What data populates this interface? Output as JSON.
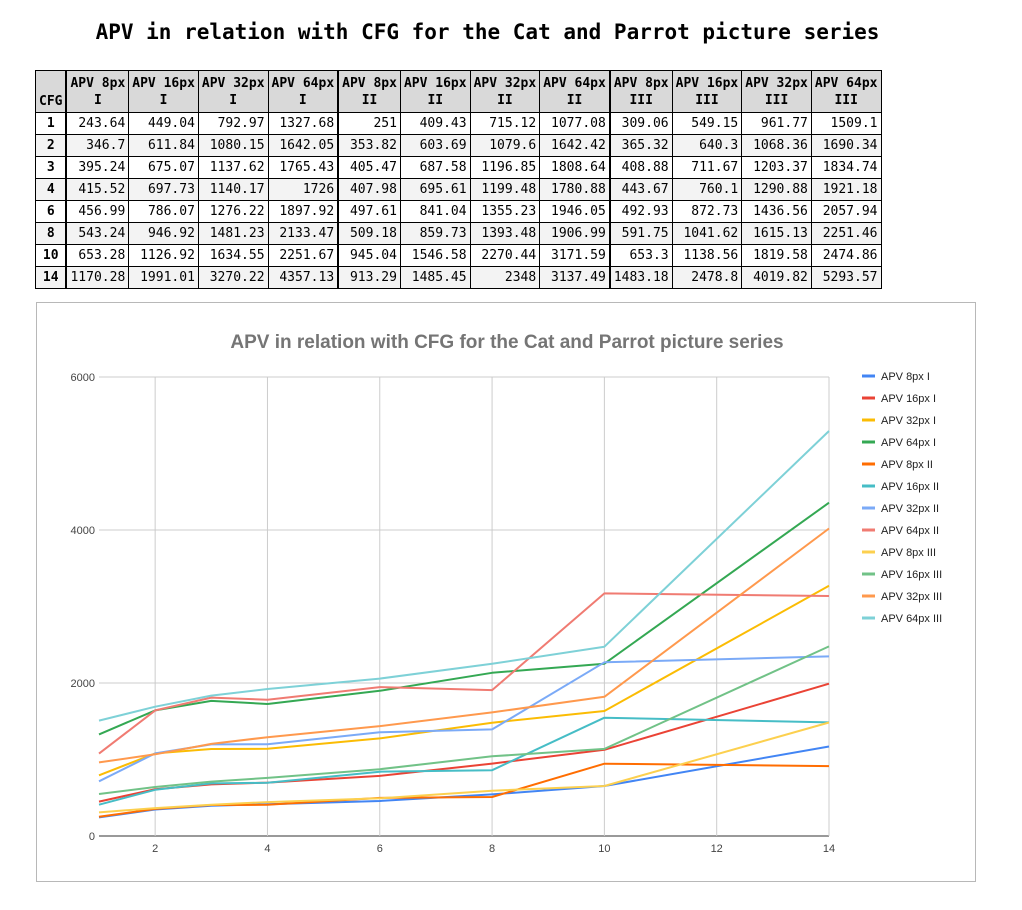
{
  "page_title": "APV in relation with CFG for the Cat and Parrot picture series",
  "table": {
    "cfg_header": "CFG",
    "columns": [
      "APV 8px\nI",
      "APV 16px\nI",
      "APV 32px\nI",
      "APV 64px\nI",
      "APV 8px\nII",
      "APV 16px\nII",
      "APV 32px\nII",
      "APV 64px\nII",
      "APV 8px\nIII",
      "APV 16px\nIII",
      "APV 32px\nIII",
      "APV 64px\nIII"
    ],
    "rows": [
      {
        "cfg": "1",
        "cells": [
          "243.64",
          "449.04",
          "792.97",
          "1327.68",
          "251",
          "409.43",
          "715.12",
          "1077.08",
          "309.06",
          "549.15",
          "961.77",
          "1509.1"
        ]
      },
      {
        "cfg": "2",
        "cells": [
          "346.7",
          "611.84",
          "1080.15",
          "1642.05",
          "353.82",
          "603.69",
          "1079.6",
          "1642.42",
          "365.32",
          "640.3",
          "1068.36",
          "1690.34"
        ]
      },
      {
        "cfg": "3",
        "cells": [
          "395.24",
          "675.07",
          "1137.62",
          "1765.43",
          "405.47",
          "687.58",
          "1196.85",
          "1808.64",
          "408.88",
          "711.67",
          "1203.37",
          "1834.74"
        ]
      },
      {
        "cfg": "4",
        "cells": [
          "415.52",
          "697.73",
          "1140.17",
          "1726",
          "407.98",
          "695.61",
          "1199.48",
          "1780.88",
          "443.67",
          "760.1",
          "1290.88",
          "1921.18"
        ]
      },
      {
        "cfg": "6",
        "cells": [
          "456.99",
          "786.07",
          "1276.22",
          "1897.92",
          "497.61",
          "841.04",
          "1355.23",
          "1946.05",
          "492.93",
          "872.73",
          "1436.56",
          "2057.94"
        ]
      },
      {
        "cfg": "8",
        "cells": [
          "543.24",
          "946.92",
          "1481.23",
          "2133.47",
          "509.18",
          "859.73",
          "1393.48",
          "1906.99",
          "591.75",
          "1041.62",
          "1615.13",
          "2251.46"
        ]
      },
      {
        "cfg": "10",
        "cells": [
          "653.28",
          "1126.92",
          "1634.55",
          "2251.67",
          "945.04",
          "1546.58",
          "2270.44",
          "3171.59",
          "653.3",
          "1138.56",
          "1819.58",
          "2474.86"
        ]
      },
      {
        "cfg": "14",
        "cells": [
          "1170.28",
          "1991.01",
          "3270.22",
          "4357.13",
          "913.29",
          "1485.45",
          "2348",
          "3137.49",
          "1483.18",
          "2478.8",
          "4019.82",
          "5293.57"
        ]
      }
    ]
  },
  "chart_data": {
    "type": "line",
    "title": "APV in relation with CFG for the Cat and Parrot picture series",
    "xlabel": "",
    "ylabel": "",
    "x": [
      1,
      2,
      3,
      4,
      6,
      8,
      10,
      14
    ],
    "xlim": [
      1,
      14
    ],
    "ylim": [
      0,
      6000
    ],
    "x_ticks": [
      2,
      4,
      6,
      8,
      10,
      12,
      14
    ],
    "y_ticks": [
      0,
      2000,
      4000,
      6000
    ],
    "grid": "vertical",
    "legend_position": "right",
    "series": [
      {
        "name": "APV 8px I",
        "color": "#4285f4",
        "values": [
          243.64,
          346.7,
          395.24,
          415.52,
          456.99,
          543.24,
          653.28,
          1170.28
        ]
      },
      {
        "name": "APV 16px I",
        "color": "#ea4335",
        "values": [
          449.04,
          611.84,
          675.07,
          697.73,
          786.07,
          946.92,
          1126.92,
          1991.01
        ]
      },
      {
        "name": "APV 32px I",
        "color": "#fbbc04",
        "values": [
          792.97,
          1080.15,
          1137.62,
          1140.17,
          1276.22,
          1481.23,
          1634.55,
          3270.22
        ]
      },
      {
        "name": "APV 64px I",
        "color": "#34a853",
        "values": [
          1327.68,
          1642.05,
          1765.43,
          1726,
          1897.92,
          2133.47,
          2251.67,
          4357.13
        ]
      },
      {
        "name": "APV 8px II",
        "color": "#ff6d01",
        "values": [
          251,
          353.82,
          405.47,
          407.98,
          497.61,
          509.18,
          945.04,
          913.29
        ]
      },
      {
        "name": "APV 16px II",
        "color": "#46bdc6",
        "values": [
          409.43,
          603.69,
          687.58,
          695.61,
          841.04,
          859.73,
          1546.58,
          1485.45
        ]
      },
      {
        "name": "APV 32px II",
        "color": "#7baaf7",
        "values": [
          715.12,
          1079.6,
          1196.85,
          1199.48,
          1355.23,
          1393.48,
          2270.44,
          2348
        ]
      },
      {
        "name": "APV 64px II",
        "color": "#f07b72",
        "values": [
          1077.08,
          1642.42,
          1808.64,
          1780.88,
          1946.05,
          1906.99,
          3171.59,
          3137.49
        ]
      },
      {
        "name": "APV 8px III",
        "color": "#fcd04f",
        "values": [
          309.06,
          365.32,
          408.88,
          443.67,
          492.93,
          591.75,
          653.3,
          1483.18
        ]
      },
      {
        "name": "APV 16px III",
        "color": "#71c287",
        "values": [
          549.15,
          640.3,
          711.67,
          760.1,
          872.73,
          1041.62,
          1138.56,
          2478.8
        ]
      },
      {
        "name": "APV 32px III",
        "color": "#ff994d",
        "values": [
          961.77,
          1068.36,
          1203.37,
          1290.88,
          1436.56,
          1615.13,
          1819.58,
          4019.82
        ]
      },
      {
        "name": "APV 64px III",
        "color": "#7ed1d7",
        "values": [
          1509.1,
          1690.34,
          1834.74,
          1921.18,
          2057.94,
          2251.46,
          2474.86,
          5293.57
        ]
      }
    ]
  }
}
